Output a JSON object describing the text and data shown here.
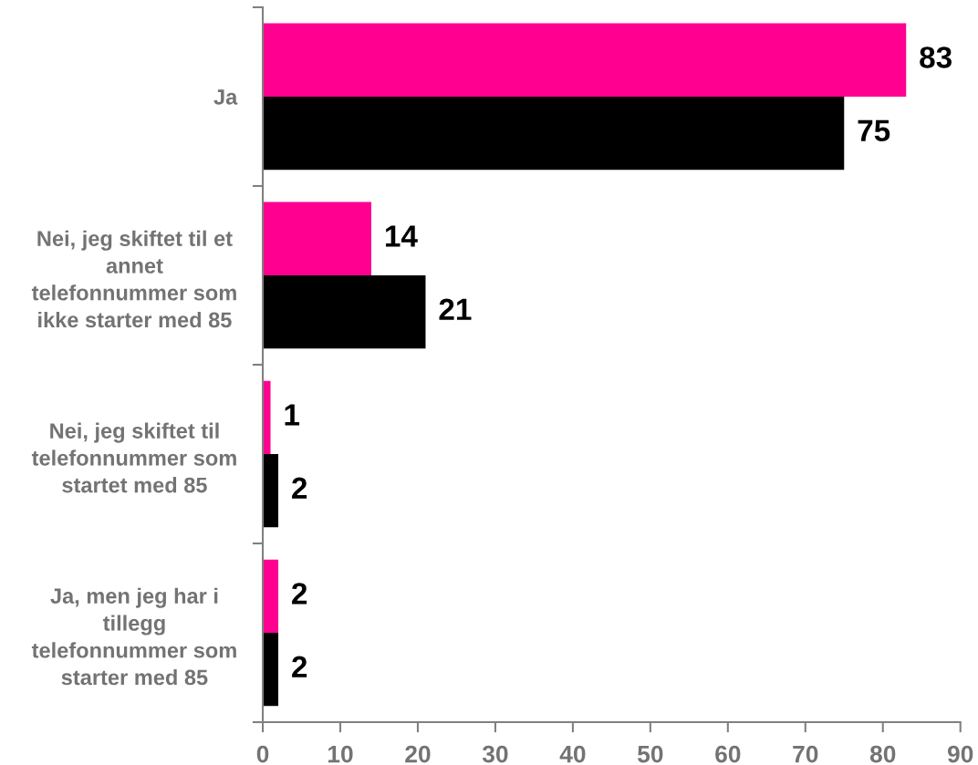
{
  "chart_data": {
    "type": "bar",
    "orientation": "horizontal",
    "categories": [
      "Ja",
      "Nei, jeg skiftet til et\nannet\ntelefonnummer som\nikke starter med 85",
      "Nei, jeg skiftet til\ntelefonnummer som\nstartet med 85",
      "Ja, men jeg har i\ntillegg\ntelefonnummer som\nstarter med 85"
    ],
    "series": [
      {
        "color": "#ff0090",
        "values": [
          83,
          14,
          1,
          2
        ]
      },
      {
        "color": "#000000",
        "values": [
          75,
          21,
          2,
          2
        ]
      }
    ],
    "xlim": [
      0,
      90
    ],
    "xticks": [
      0,
      10,
      20,
      30,
      40,
      50,
      60,
      70,
      80,
      90
    ],
    "data_labels": true
  }
}
